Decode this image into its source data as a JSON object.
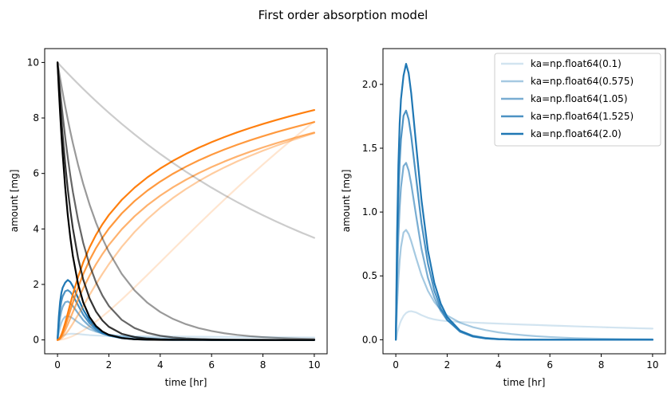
{
  "figure": {
    "suptitle": "First order absorption model"
  },
  "chart_data": [
    {
      "type": "line",
      "xlabel": "time [hr]",
      "ylabel": "amount [mg]",
      "xlim": [
        -0.5,
        10.5
      ],
      "ylim": [
        -0.5,
        10.5
      ],
      "xticks": [
        0,
        2,
        4,
        6,
        8,
        10
      ],
      "yticks": [
        0,
        2,
        4,
        6,
        8,
        10
      ],
      "x": [
        0,
        0.05,
        0.1,
        0.15,
        0.2,
        0.3,
        0.4,
        0.5,
        0.6,
        0.8,
        1.0,
        1.25,
        1.5,
        1.75,
        2.0,
        2.5,
        3.0,
        3.5,
        4.0,
        4.5,
        5.0,
        5.5,
        6.0,
        6.5,
        7.0,
        7.5,
        8.0,
        8.5,
        9.0,
        9.5,
        10.0
      ],
      "series": [
        {
          "group": "central",
          "color": "#1f77b4",
          "opacity": 0.2,
          "values": [
            0.0,
            0.0481,
            0.0882,
            0.1215,
            0.1484,
            0.1867,
            0.2094,
            0.2207,
            0.2236,
            0.2131,
            0.1929,
            0.1723,
            0.159,
            0.1508,
            0.1454,
            0.139,
            0.1344,
            0.1303,
            0.1263,
            0.1225,
            0.1187,
            0.1152,
            0.1117,
            0.1083,
            0.105,
            0.1018,
            0.0987,
            0.0957,
            0.0928,
            0.0899,
            0.0872
          ]
        },
        {
          "group": "central",
          "color": "#1f77b4",
          "opacity": 0.4,
          "values": [
            0.0,
            0.2669,
            0.4677,
            0.6173,
            0.7253,
            0.8402,
            0.8604,
            0.8284,
            0.7712,
            0.6349,
            0.5059,
            0.3829,
            0.2957,
            0.234,
            0.1898,
            0.1335,
            0.0987,
            0.075,
            0.0578,
            0.0449,
            0.035,
            0.0273,
            0.0213,
            0.0166,
            0.0129,
            0.0101,
            0.0079,
            0.0061,
            0.0048,
            0.0037,
            0.0029
          ]
        },
        {
          "group": "central",
          "color": "#1f77b4",
          "opacity": 0.6,
          "values": [
            0.0,
            0.4723,
            0.8042,
            1.0345,
            1.1924,
            1.3597,
            1.3851,
            1.3254,
            1.2193,
            0.9604,
            0.7113,
            0.485,
            0.3311,
            0.2255,
            0.1532,
            0.0702,
            0.032,
            0.0146,
            0.0066,
            0.003,
            0.0014,
            0.0006,
            0.0003,
            0.0001,
            0.0001,
            0.0,
            0.0,
            0.0,
            0.0,
            0.0,
            0.0
          ]
        },
        {
          "group": "central",
          "color": "#1f77b4",
          "opacity": 0.8,
          "values": [
            0.0,
            0.6585,
            1.1006,
            1.388,
            1.5683,
            1.7546,
            1.7945,
            1.7266,
            1.5943,
            1.2519,
            0.9133,
            0.597,
            0.3846,
            0.246,
            0.1566,
            0.0624,
            0.0246,
            0.0096,
            0.0037,
            0.0014,
            0.0006,
            0.0002,
            0.0001,
            0.0,
            0.0,
            0.0,
            0.0,
            0.0,
            0.0,
            0.0,
            0.0
          ]
        },
        {
          "group": "central",
          "color": "#1f77b4",
          "opacity": 1.0,
          "values": [
            0.0,
            0.8311,
            1.3642,
            1.6934,
            1.8822,
            2.0679,
            2.1608,
            2.0875,
            1.9303,
            1.5096,
            1.0939,
            0.6993,
            0.4449,
            0.2825,
            0.1788,
            0.0706,
            0.0278,
            0.0109,
            0.0043,
            0.0017,
            0.0007,
            0.0003,
            0.0001,
            0.0,
            0.0,
            0.0,
            0.0,
            0.0,
            0.0,
            0.0,
            0.0
          ]
        },
        {
          "group": "eliminated",
          "color": "#ff7f0e",
          "opacity": 0.2,
          "values": [
            0.0,
            0.0013,
            0.0049,
            0.0109,
            0.0188,
            0.0407,
            0.0691,
            0.1034,
            0.1427,
            0.2343,
            0.3413,
            0.4957,
            0.6653,
            0.8474,
            1.0404,
            1.454,
            1.8926,
            2.3451,
            2.8036,
            3.2633,
            3.7208,
            4.1738,
            4.6205,
            5.0595,
            5.4901,
            5.9116,
            6.3237,
            6.7259,
            7.1181,
            7.5002,
            7.8722
          ]
        },
        {
          "group": "eliminated",
          "color": "#ff7f0e",
          "opacity": 0.4,
          "values": [
            0.0,
            0.0069,
            0.0263,
            0.0563,
            0.095,
            0.1933,
            0.3126,
            0.4474,
            0.5935,
            0.9029,
            1.2238,
            1.624,
            2.0135,
            2.3831,
            2.729,
            3.3539,
            3.891,
            4.3557,
            4.7616,
            5.1195,
            5.4379,
            5.7238,
            5.9825,
            6.2183,
            6.4346,
            6.6343,
            6.8197,
            6.9928,
            7.1553,
            7.3085,
            7.4535
          ]
        },
        {
          "group": "eliminated",
          "color": "#ff7f0e",
          "opacity": 0.6,
          "values": [
            0.0,
            0.0127,
            0.0482,
            0.103,
            0.1733,
            0.3497,
            0.5579,
            0.7811,
            1.0089,
            1.4468,
            1.8559,
            2.318,
            2.7286,
            3.0947,
            3.4231,
            3.986,
            4.4564,
            4.8561,
            5.2011,
            5.5035,
            5.772,
            6.013,
            6.2313,
            6.4304,
            6.6132,
            6.782,
            6.9388,
            7.0852,
            7.2225,
            7.3518,
            7.474
          ]
        },
        {
          "group": "eliminated",
          "color": "#ff7f0e",
          "opacity": 0.8,
          "values": [
            0.0,
            0.0181,
            0.0685,
            0.1462,
            0.2451,
            0.4899,
            0.7719,
            1.0656,
            1.3568,
            1.8942,
            2.3694,
            2.8786,
            3.3118,
            3.6856,
            4.013,
            4.5582,
            5.0053,
            5.3824,
            5.7071,
            5.9914,
            6.2438,
            6.4704,
            6.6758,
            6.8633,
            7.0357,
            7.1952,
            7.3434,
            7.4819,
            7.612,
            7.7347,
            7.8508
          ]
        },
        {
          "group": "eliminated",
          "color": "#ff7f0e",
          "opacity": 1.0,
          "values": [
            0.0,
            0.0231,
            0.0872,
            0.1853,
            0.31,
            0.6131,
            0.957,
            1.3091,
            1.6521,
            2.2671,
            2.7927,
            3.3376,
            3.7891,
            4.172,
            4.5028,
            5.0465,
            5.4886,
            5.8596,
            6.1782,
            6.4569,
            6.7043,
            6.9265,
            7.1281,
            7.3124,
            7.482,
            7.639,
            7.7851,
            7.9218,
            8.0503,
            8.1716,
            8.2865
          ]
        },
        {
          "group": "gut",
          "color": "#000000",
          "opacity": 0.2,
          "values": [
            10.0,
            9.9501,
            9.9005,
            9.8511,
            9.802,
            9.7045,
            9.6079,
            9.5123,
            9.4176,
            9.2312,
            9.0484,
            8.825,
            8.6071,
            8.3946,
            8.1873,
            7.788,
            7.4082,
            7.0469,
            6.7032,
            6.3763,
            6.0653,
            5.7695,
            5.4881,
            5.2205,
            4.9659,
            4.7237,
            4.4933,
            4.2741,
            4.0657,
            3.8674,
            3.6788
          ]
        },
        {
          "group": "gut",
          "color": "#000000",
          "opacity": 0.4,
          "values": [
            10.0,
            9.7166,
            9.4412,
            9.1736,
            8.9137,
            8.4156,
            7.9453,
            7.5014,
            7.0823,
            6.3128,
            5.627,
            4.875,
            4.2236,
            3.6592,
            3.1703,
            2.3797,
            1.7862,
            1.3408,
            1.0065,
            0.7555,
            0.5671,
            0.4257,
            0.3195,
            0.2398,
            0.18,
            0.1351,
            0.1014,
            0.0761,
            0.0571,
            0.0429,
            0.0322
          ]
        },
        {
          "group": "gut",
          "color": "#000000",
          "opacity": 0.6,
          "values": [
            10.0,
            9.4885,
            9.0032,
            8.5428,
            8.1058,
            7.2979,
            6.5705,
            5.9156,
            5.3259,
            4.3171,
            3.4994,
            2.6943,
            2.0741,
            1.5968,
            1.2246,
            0.7244,
            0.4285,
            0.2535,
            0.15,
            0.0887,
            0.0525,
            0.0311,
            0.0184,
            0.0109,
            0.0064,
            0.0038,
            0.0022,
            0.0013,
            0.0008,
            0.0005,
            0.0003
          ]
        },
        {
          "group": "gut",
          "color": "#000000",
          "opacity": 0.8,
          "values": [
            10.0,
            9.2659,
            8.5857,
            7.9554,
            7.3714,
            6.3296,
            5.435,
            4.667,
            4.0076,
            2.9542,
            2.1777,
            1.4911,
            1.0212,
            0.6994,
            0.4733,
            0.2212,
            0.1034,
            0.0484,
            0.0226,
            0.0106,
            0.0049,
            0.0023,
            0.0011,
            0.0005,
            0.0002,
            0.0001,
            0.0001,
            0.0,
            0.0,
            0.0,
            0.0
          ]
        },
        {
          "group": "gut",
          "color": "#000000",
          "opacity": 1.0,
          "values": [
            10.0,
            9.0484,
            8.1873,
            7.4082,
            6.7032,
            5.4881,
            4.4933,
            3.6788,
            3.0119,
            2.019,
            1.3534,
            0.8208,
            0.4979,
            0.302,
            0.1832,
            0.0674,
            0.0248,
            0.0091,
            0.0034,
            0.0012,
            0.0005,
            0.0002,
            0.0001,
            0.0,
            0.0,
            0.0,
            0.0,
            0.0,
            0.0,
            0.0,
            0.0
          ]
        }
      ]
    },
    {
      "type": "line",
      "xlabel": "time [hr]",
      "ylabel": "amount [mg]",
      "xlim": [
        -0.5,
        10.5
      ],
      "ylim": [
        -0.11,
        2.28
      ],
      "xticks": [
        0,
        2,
        4,
        6,
        8,
        10
      ],
      "yticks": [
        0.0,
        0.5,
        1.0,
        1.5,
        2.0
      ],
      "legend": "top-right",
      "x": [
        0,
        0.05,
        0.1,
        0.15,
        0.2,
        0.3,
        0.4,
        0.5,
        0.6,
        0.8,
        1.0,
        1.25,
        1.5,
        1.75,
        2.0,
        2.5,
        3.0,
        3.5,
        4.0,
        4.5,
        5.0,
        5.5,
        6.0,
        6.5,
        7.0,
        7.5,
        8.0,
        8.5,
        9.0,
        9.5,
        10.0
      ],
      "series": [
        {
          "name": "ka=np.float64(0.1)",
          "color": "#1f77b4",
          "opacity": 0.2,
          "values": [
            0.0,
            0.0481,
            0.0882,
            0.1215,
            0.1484,
            0.1867,
            0.2094,
            0.2207,
            0.2236,
            0.2131,
            0.1929,
            0.1723,
            0.159,
            0.1508,
            0.1454,
            0.139,
            0.1344,
            0.1303,
            0.1263,
            0.1225,
            0.1187,
            0.1152,
            0.1117,
            0.1083,
            0.105,
            0.1018,
            0.0987,
            0.0957,
            0.0928,
            0.0899,
            0.0872
          ]
        },
        {
          "name": "ka=np.float64(0.575)",
          "color": "#1f77b4",
          "opacity": 0.4,
          "values": [
            0.0,
            0.2669,
            0.4677,
            0.6173,
            0.7253,
            0.8402,
            0.8604,
            0.8284,
            0.7712,
            0.6349,
            0.5059,
            0.3829,
            0.2957,
            0.234,
            0.1898,
            0.1335,
            0.0987,
            0.075,
            0.0578,
            0.0449,
            0.035,
            0.0273,
            0.0213,
            0.0166,
            0.0129,
            0.0101,
            0.0079,
            0.0061,
            0.0048,
            0.0037,
            0.0029
          ]
        },
        {
          "name": "ka=np.float64(1.05)",
          "color": "#1f77b4",
          "opacity": 0.6,
          "values": [
            0.0,
            0.4723,
            0.8042,
            1.0345,
            1.1924,
            1.3597,
            1.3851,
            1.3254,
            1.2193,
            0.9604,
            0.7113,
            0.485,
            0.3311,
            0.2255,
            0.1532,
            0.0702,
            0.032,
            0.0146,
            0.0066,
            0.003,
            0.0014,
            0.0006,
            0.0003,
            0.0001,
            0.0001,
            0.0,
            0.0,
            0.0,
            0.0,
            0.0,
            0.0
          ]
        },
        {
          "name": "ka=np.float64(1.525)",
          "color": "#1f77b4",
          "opacity": 0.8,
          "values": [
            0.0,
            0.6585,
            1.1006,
            1.388,
            1.5683,
            1.7546,
            1.7945,
            1.7266,
            1.5943,
            1.2519,
            0.9133,
            0.597,
            0.3846,
            0.246,
            0.1566,
            0.0624,
            0.0246,
            0.0096,
            0.0037,
            0.0014,
            0.0006,
            0.0002,
            0.0001,
            0.0,
            0.0,
            0.0,
            0.0,
            0.0,
            0.0,
            0.0,
            0.0
          ]
        },
        {
          "name": "ka=np.float64(2.0)",
          "color": "#1f77b4",
          "opacity": 1.0,
          "values": [
            0.0,
            0.8311,
            1.3642,
            1.6934,
            1.8822,
            2.0679,
            2.1608,
            2.0875,
            1.9303,
            1.5096,
            1.0939,
            0.6993,
            0.4449,
            0.2825,
            0.1788,
            0.0706,
            0.0278,
            0.0109,
            0.0043,
            0.0017,
            0.0007,
            0.0003,
            0.0001,
            0.0,
            0.0,
            0.0,
            0.0,
            0.0,
            0.0,
            0.0,
            0.0
          ]
        }
      ]
    }
  ]
}
